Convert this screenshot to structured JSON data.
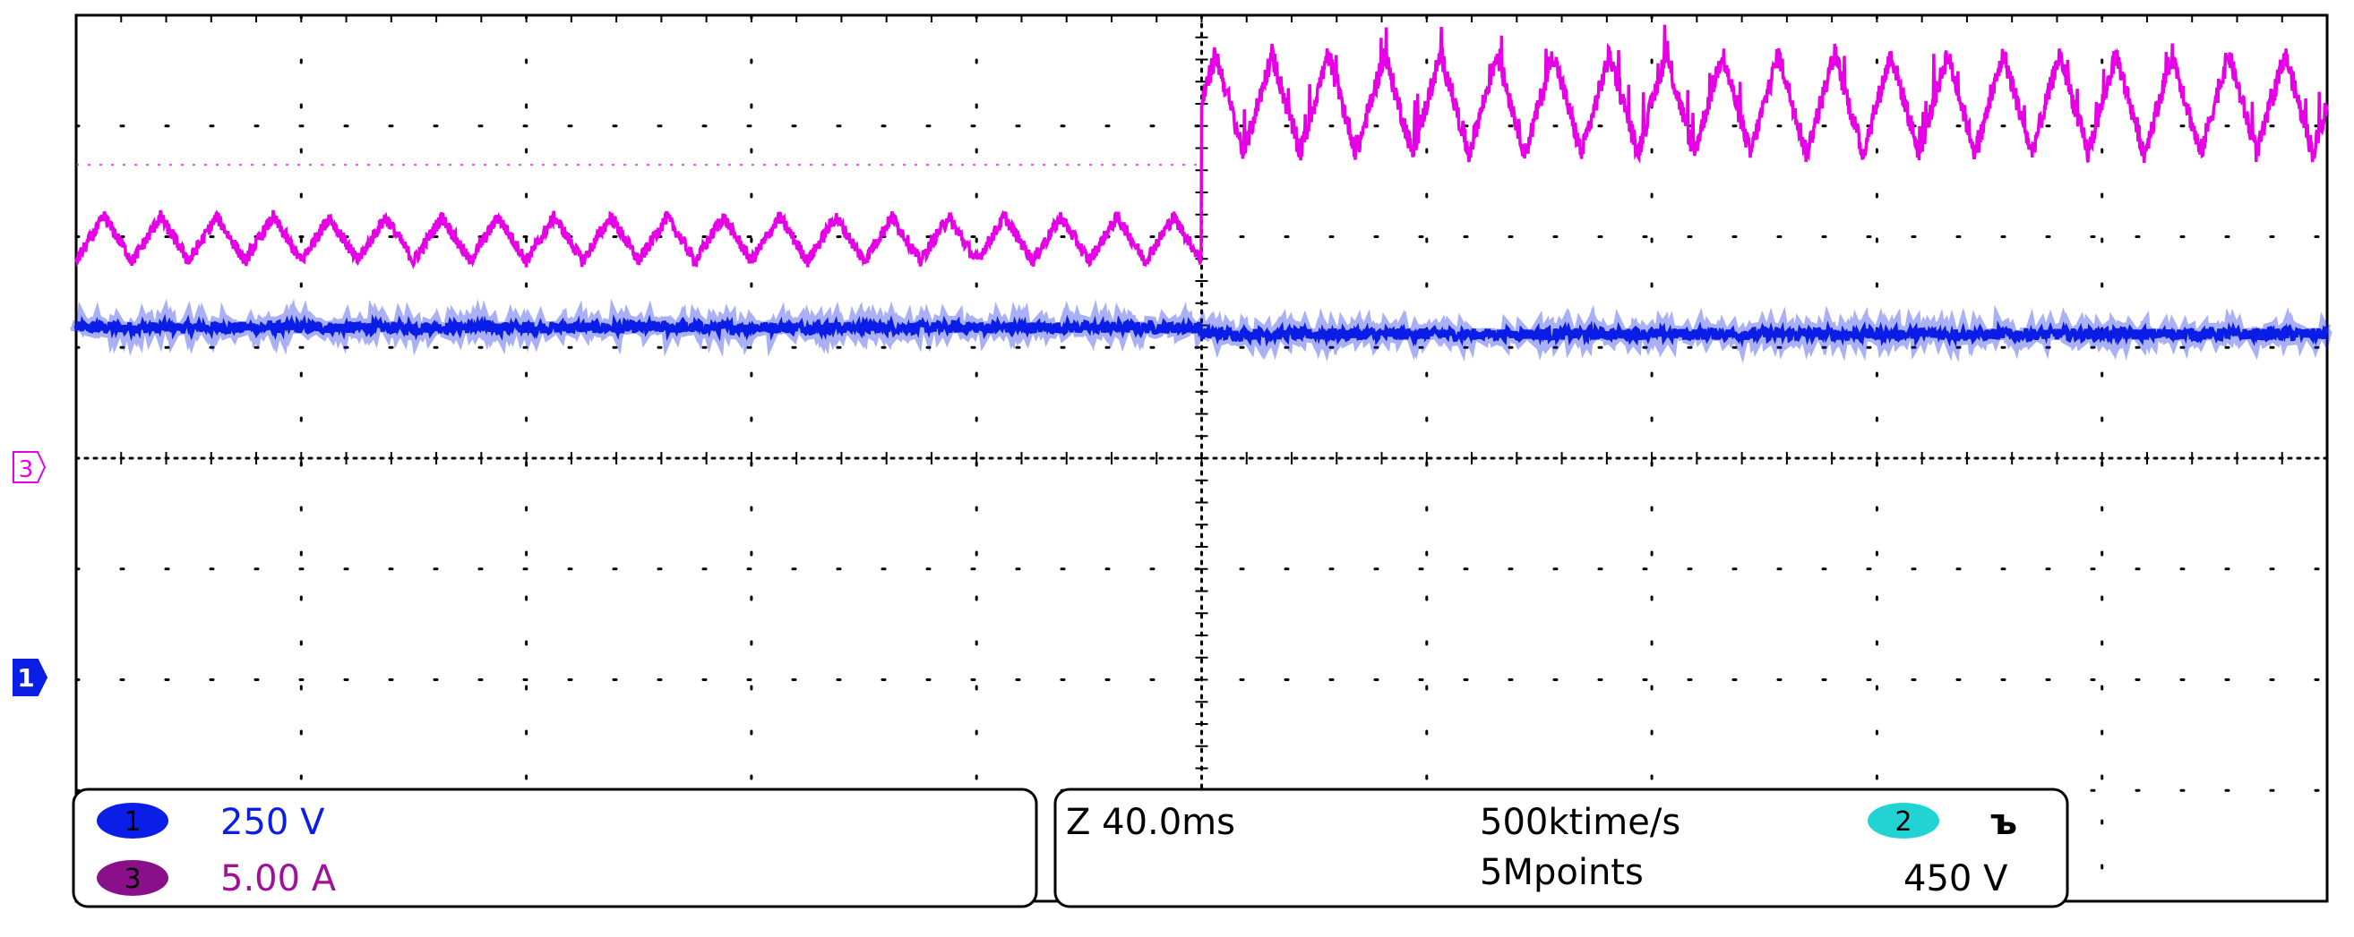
{
  "chart_data": {
    "type": "line",
    "title": "",
    "xlabel": "",
    "ylabel": "",
    "grid": true,
    "divisions": {
      "x": 10,
      "y": 8
    },
    "x_units": "divisions",
    "xlim": [
      0,
      10
    ],
    "ylim": [
      -4,
      4
    ],
    "trigger_x": 5.0,
    "series": [
      {
        "channel": "1",
        "color": "#0a1ee6",
        "marker_label": "1",
        "marker_y": -0.75,
        "baseline_before": 1.18,
        "baseline_after": 1.12,
        "noise": 0.05
      },
      {
        "channel": "3",
        "color": "#e600e6",
        "marker_label": "3",
        "marker_y": 1.2,
        "before": {
          "mean": 1.98,
          "amplitude": 0.2,
          "cycles": 20
        },
        "after": {
          "mean": 3.2,
          "amplitude": 0.45,
          "cycles": 20
        },
        "reference_level_y": 2.65
      }
    ]
  },
  "readout": {
    "ch1_number": "1",
    "ch1_scale": "250 V",
    "ch3_number": "3",
    "ch3_scale": "5.00 A",
    "zoom": "Z 40.0ms",
    "sample_rate": "500ktime/s",
    "record": "5Mpoints",
    "trig_channel": "2",
    "trig_slope": "ъ",
    "trig_level": "450 V"
  },
  "colors": {
    "ch1": "#0a1ee6",
    "ch3": "#e600e6",
    "ch3_badge": "#8a108a",
    "ch2_badge": "#22d3d3",
    "grid": "#000000"
  }
}
